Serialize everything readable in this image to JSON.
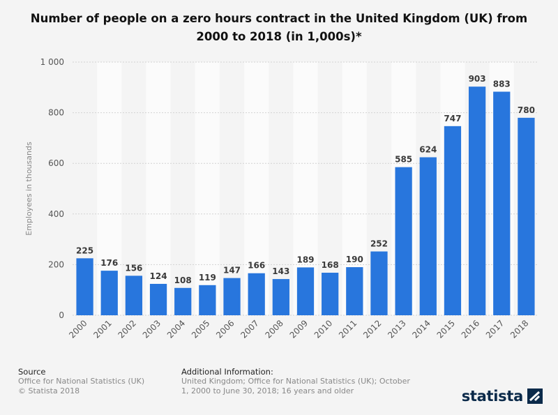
{
  "chart_data": {
    "type": "bar",
    "title": "Number of people on a zero hours contract in the United Kingdom (UK) from 2000 to 2018 (in 1,000s)*",
    "xlabel": "",
    "ylabel": "Employees in thousands",
    "categories": [
      "2000",
      "2001",
      "2002",
      "2003",
      "2004",
      "2005",
      "2006",
      "2007",
      "2008",
      "2009",
      "2010",
      "2011",
      "2012",
      "2013",
      "2014",
      "2015",
      "2016",
      "2017",
      "2018"
    ],
    "values": [
      225,
      176,
      156,
      124,
      108,
      119,
      147,
      166,
      143,
      189,
      168,
      190,
      252,
      585,
      624,
      747,
      903,
      883,
      780
    ],
    "ylim": [
      0,
      1000
    ],
    "yticks": [
      0,
      200,
      400,
      600,
      800,
      1000
    ],
    "ytick_labels": [
      "0",
      "200",
      "400",
      "600",
      "800",
      "1 000"
    ],
    "bar_color": "#2876dd",
    "grid": true
  },
  "footer": {
    "source_heading": "Source",
    "source_lines": [
      "Office for National Statistics (UK)",
      "© Statista 2018"
    ],
    "info_heading": "Additional Information:",
    "info_text": "United Kingdom; Office for National Statistics (UK); October 1, 2000 to June 30, 2018; 16 years and older"
  },
  "brand": {
    "name": "statista",
    "icon": "statista-logo-icon"
  }
}
